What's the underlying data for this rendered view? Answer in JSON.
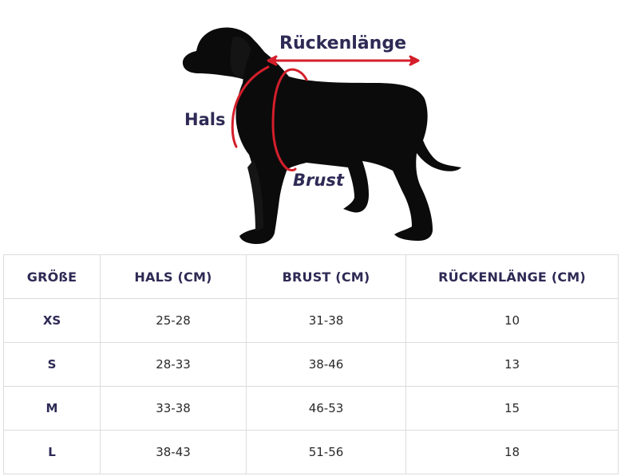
{
  "diagram": {
    "labels": {
      "back_length": "Rückenlänge",
      "neck": "Hals",
      "chest": "Brust"
    },
    "colors": {
      "dog": "#0b0b0b",
      "measure_line": "#d41f2b",
      "label_text": "#2e2a55"
    }
  },
  "table": {
    "headers": [
      "GRÖßE",
      "HALS (CM)",
      "BRUST (CM)",
      "RÜCKENLÄNGE (CM)"
    ],
    "rows": [
      [
        "XS",
        "25-28",
        "31-38",
        "10"
      ],
      [
        "S",
        "28-33",
        "38-46",
        "13"
      ],
      [
        "M",
        "33-38",
        "46-53",
        "15"
      ],
      [
        "L",
        "38-43",
        "51-56",
        "18"
      ]
    ]
  }
}
